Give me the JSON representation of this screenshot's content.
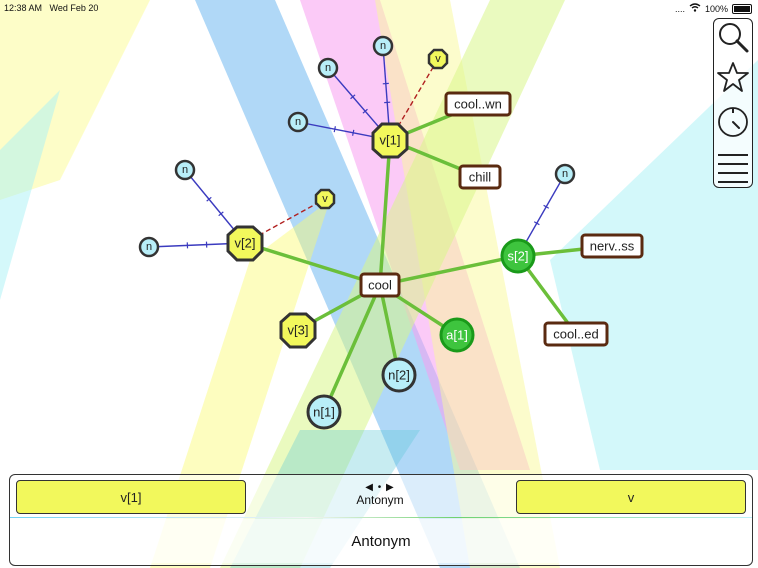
{
  "status_bar": {
    "time": "12:38 AM",
    "date": "Wed Feb 20",
    "signal": "....",
    "battery": "100%"
  },
  "toolbar": {
    "items": [
      {
        "icon": "search-icon"
      },
      {
        "icon": "star-icon"
      },
      {
        "icon": "timer-icon"
      },
      {
        "icon": "menu-icon"
      }
    ]
  },
  "graph": {
    "center": {
      "label": "cool"
    },
    "nodes": [
      {
        "label": "v[1]",
        "kind": "verb"
      },
      {
        "label": "v[2]",
        "kind": "verb"
      },
      {
        "label": "v[3]",
        "kind": "verb"
      },
      {
        "label": "s[2]",
        "kind": "satellite"
      },
      {
        "label": "a[1]",
        "kind": "adjective"
      },
      {
        "label": "n[2]",
        "kind": "noun"
      },
      {
        "label": "n[1]",
        "kind": "noun"
      },
      {
        "label": "cool..wn",
        "kind": "word"
      },
      {
        "label": "chill",
        "kind": "word"
      },
      {
        "label": "nerv..ss",
        "kind": "word"
      },
      {
        "label": "cool..ed",
        "kind": "word"
      },
      {
        "label": "n",
        "kind": "mini-noun"
      },
      {
        "label": "v",
        "kind": "mini-verb"
      }
    ]
  },
  "relation_panel": {
    "left_label": "v[1]",
    "right_label": "v",
    "relation_title": "Antonym",
    "relation_arrows": "◀ • ▶",
    "bottom_label": "Antonym"
  },
  "colors": {
    "verb": "#f2f85c",
    "satellite": "#3ec43e",
    "noun": "#b8eef8",
    "word_border": "#5a2a10",
    "strong_edge": "#6bbf3a",
    "hyponym_edge": "#3b3bbf",
    "antonym_edge": "#b02020"
  }
}
